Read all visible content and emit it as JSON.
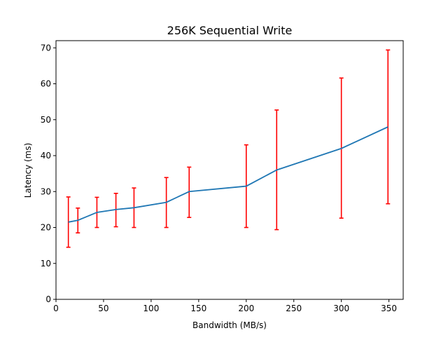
{
  "chart_data": {
    "type": "line",
    "title": "256K  Sequential Write",
    "xlabel": "Bandwidth (MB/s)",
    "ylabel": "Latency (ms)",
    "xlim": [
      0,
      365
    ],
    "ylim": [
      0,
      72
    ],
    "x_ticks": [
      0,
      50,
      100,
      150,
      200,
      250,
      300,
      350
    ],
    "y_ticks": [
      0,
      10,
      20,
      30,
      40,
      50,
      60,
      70
    ],
    "grid": false,
    "legend": "none",
    "series": [
      {
        "line_color": "#1f77b4",
        "error_bar_color": "#ff0000",
        "x": [
          13,
          23,
          43,
          63,
          82,
          116,
          140,
          200,
          232,
          300,
          349
        ],
        "y": [
          21.5,
          22,
          24.2,
          25,
          25.5,
          27,
          30,
          31.5,
          36,
          42,
          48
        ],
        "error_low": [
          14.5,
          18.5,
          20,
          20.2,
          20,
          20,
          22.8,
          20,
          19.4,
          22.6,
          26.6
        ],
        "error_high": [
          28.5,
          25.4,
          28.4,
          29.5,
          31,
          33.9,
          36.8,
          43,
          52.7,
          61.6,
          69.4
        ]
      }
    ]
  }
}
